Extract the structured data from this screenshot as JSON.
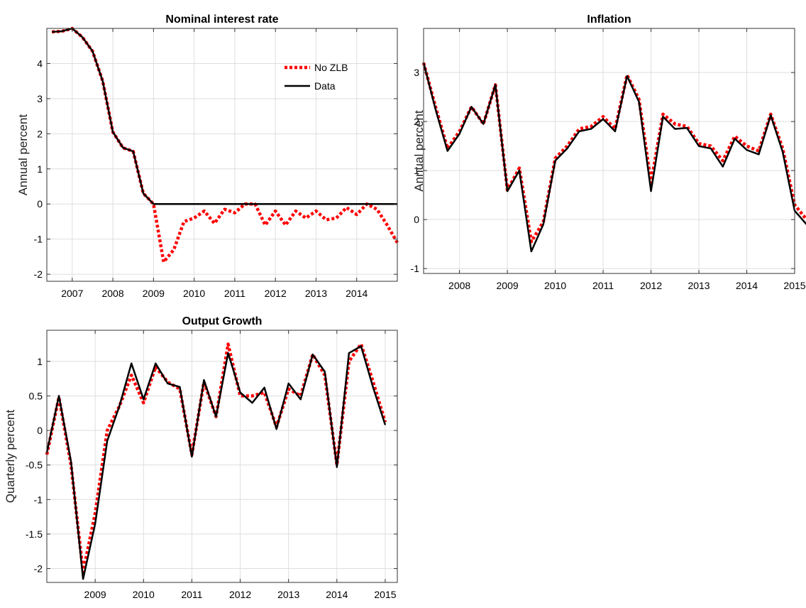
{
  "chart_data": [
    {
      "type": "line",
      "title": "Nominal interest rate",
      "ylabel": "Annual percent",
      "xlabel": "",
      "xlim": [
        2006.375,
        2015.0
      ],
      "ylim": [
        -2.2,
        5.0
      ],
      "yticks": [
        -2,
        -1,
        0,
        1,
        2,
        3,
        4
      ],
      "xticks": [
        2007,
        2008,
        2009,
        2010,
        2011,
        2012,
        2013,
        2014
      ],
      "x_start": 2006.5,
      "x_step": 0.25,
      "grid": true,
      "legend": {
        "placement": "top-right",
        "entries": [
          "No ZLB",
          "Data"
        ]
      },
      "series": [
        {
          "name": "No ZLB",
          "color": "#ff0000",
          "style": "dotted",
          "values": [
            4.9,
            4.92,
            5.0,
            4.75,
            4.35,
            3.5,
            2.05,
            1.6,
            1.5,
            0.3,
            0.0,
            -1.65,
            -1.3,
            -0.5,
            -0.4,
            -0.2,
            -0.55,
            -0.15,
            -0.25,
            0.0,
            0.0,
            -0.6,
            -0.2,
            -0.6,
            -0.2,
            -0.4,
            -0.2,
            -0.45,
            -0.4,
            -0.1,
            -0.3,
            0.0,
            -0.15,
            -0.6,
            -1.1
          ]
        },
        {
          "name": "Data",
          "color": "#000000",
          "style": "solid",
          "values": [
            4.9,
            4.92,
            5.0,
            4.75,
            4.35,
            3.5,
            2.05,
            1.6,
            1.5,
            0.3,
            0.0,
            0.0,
            0.0,
            0.0,
            0.0,
            0.0,
            0.0,
            0.0,
            0.0,
            0.0,
            0.0,
            0.0,
            0.0,
            0.0,
            0.0,
            0.0,
            0.0,
            0.0,
            0.0,
            0.0,
            0.0,
            0.0,
            0.0,
            0.0,
            0.0
          ]
        }
      ]
    },
    {
      "type": "line",
      "title": "Inflation",
      "ylabel": "Annual percent",
      "xlabel": "",
      "xlim": [
        2007.25,
        2015.0
      ],
      "ylim": [
        -1.1,
        3.9
      ],
      "yticks": [
        -1,
        0,
        1,
        2,
        3
      ],
      "xticks": [
        2008,
        2009,
        2010,
        2011,
        2012,
        2013,
        2014,
        2015
      ],
      "x_start": 2007.25,
      "x_step": 0.25,
      "grid": true,
      "series": [
        {
          "name": "No ZLB",
          "color": "#ff0000",
          "style": "dotted",
          "values": [
            3.2,
            2.3,
            1.45,
            1.8,
            2.3,
            1.95,
            2.75,
            0.6,
            1.05,
            -0.45,
            -0.05,
            1.25,
            1.5,
            1.85,
            1.9,
            2.1,
            1.85,
            2.95,
            2.45,
            0.75,
            2.15,
            1.95,
            1.9,
            1.55,
            1.5,
            1.2,
            1.7,
            1.5,
            1.4,
            2.15,
            1.45,
            0.3,
            0.0
          ]
        },
        {
          "name": "Data",
          "color": "#000000",
          "style": "solid",
          "values": [
            3.2,
            2.25,
            1.4,
            1.75,
            2.3,
            1.95,
            2.75,
            0.58,
            1.0,
            -0.65,
            -0.1,
            1.2,
            1.45,
            1.8,
            1.85,
            2.05,
            1.8,
            2.93,
            2.4,
            0.58,
            2.1,
            1.85,
            1.87,
            1.5,
            1.45,
            1.08,
            1.65,
            1.42,
            1.33,
            2.13,
            1.38,
            0.18,
            -0.1
          ]
        }
      ]
    },
    {
      "type": "line",
      "title": "Output Growth",
      "ylabel": "Quarterly percent",
      "xlabel": "",
      "xlim": [
        2008.0,
        2015.25
      ],
      "ylim": [
        -2.2,
        1.45
      ],
      "yticks": [
        -2,
        -1.5,
        -1,
        -0.5,
        0,
        0.5,
        1
      ],
      "ytick_labels": [
        "-2",
        "-1.5",
        "-1",
        "-0.5",
        "0",
        "0.5",
        "1"
      ],
      "xticks": [
        2009,
        2010,
        2011,
        2012,
        2013,
        2014,
        2015
      ],
      "x_start": 2008.0,
      "x_step": 0.25,
      "grid": true,
      "series": [
        {
          "name": "No ZLB",
          "color": "#ff0000",
          "style": "dotted",
          "values": [
            -0.35,
            0.48,
            -0.5,
            -2.05,
            -1.2,
            0.0,
            0.35,
            0.8,
            0.4,
            0.92,
            0.7,
            0.6,
            -0.35,
            0.7,
            0.2,
            1.25,
            0.5,
            0.5,
            0.55,
            0.05,
            0.6,
            0.5,
            1.1,
            0.8,
            -0.5,
            1.0,
            1.25,
            0.7,
            0.12
          ]
        },
        {
          "name": "Data",
          "color": "#000000",
          "style": "solid",
          "values": [
            -0.32,
            0.5,
            -0.45,
            -2.15,
            -1.35,
            -0.15,
            0.35,
            0.97,
            0.45,
            0.97,
            0.68,
            0.63,
            -0.38,
            0.73,
            0.2,
            1.12,
            0.55,
            0.4,
            0.62,
            0.02,
            0.68,
            0.45,
            1.1,
            0.85,
            -0.53,
            1.12,
            1.22,
            0.62,
            0.08
          ]
        }
      ]
    }
  ]
}
